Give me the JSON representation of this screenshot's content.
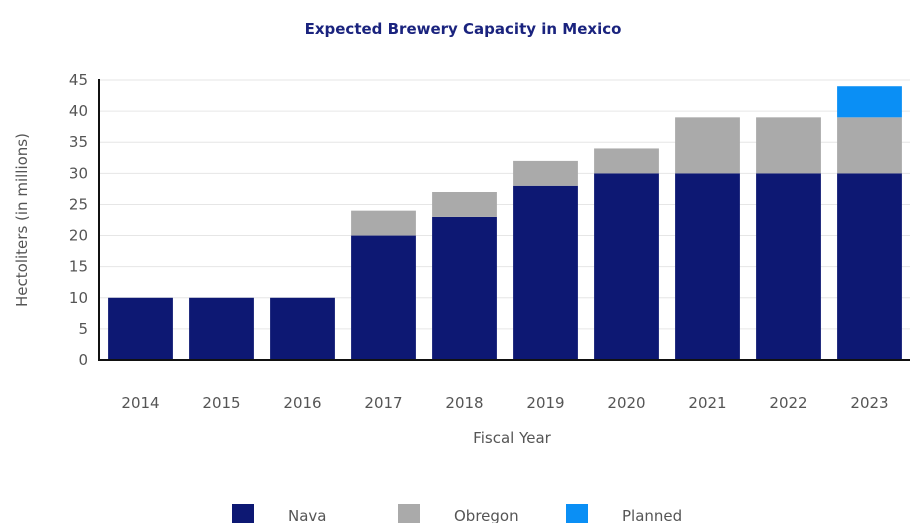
{
  "chart_data": {
    "type": "bar",
    "stacked": true,
    "title": "Expected Brewery Capacity in Mexico",
    "xlabel": "Fiscal Year",
    "ylabel": "Hectoliters (in millions)",
    "ylim": [
      0,
      45
    ],
    "yticks": [
      0,
      5,
      10,
      15,
      20,
      25,
      30,
      35,
      40,
      45
    ],
    "grid": true,
    "legend_position": "bottom",
    "categories": [
      "2014",
      "2015",
      "2016",
      "2017",
      "2018",
      "2019",
      "2020",
      "2021",
      "2022",
      "2023"
    ],
    "series": [
      {
        "name": "Nava",
        "color": "#0d1873",
        "values": [
          10,
          10,
          10,
          20,
          23,
          28,
          30,
          30,
          30,
          30
        ]
      },
      {
        "name": "Obregon",
        "color": "#aaaaaa",
        "values": [
          0,
          0,
          0,
          4,
          4,
          4,
          4,
          9,
          9,
          9
        ]
      },
      {
        "name": "Planned",
        "color": "#0a8ff5",
        "values": [
          0,
          0,
          0,
          0,
          0,
          0,
          0,
          0,
          0,
          5
        ]
      }
    ]
  }
}
